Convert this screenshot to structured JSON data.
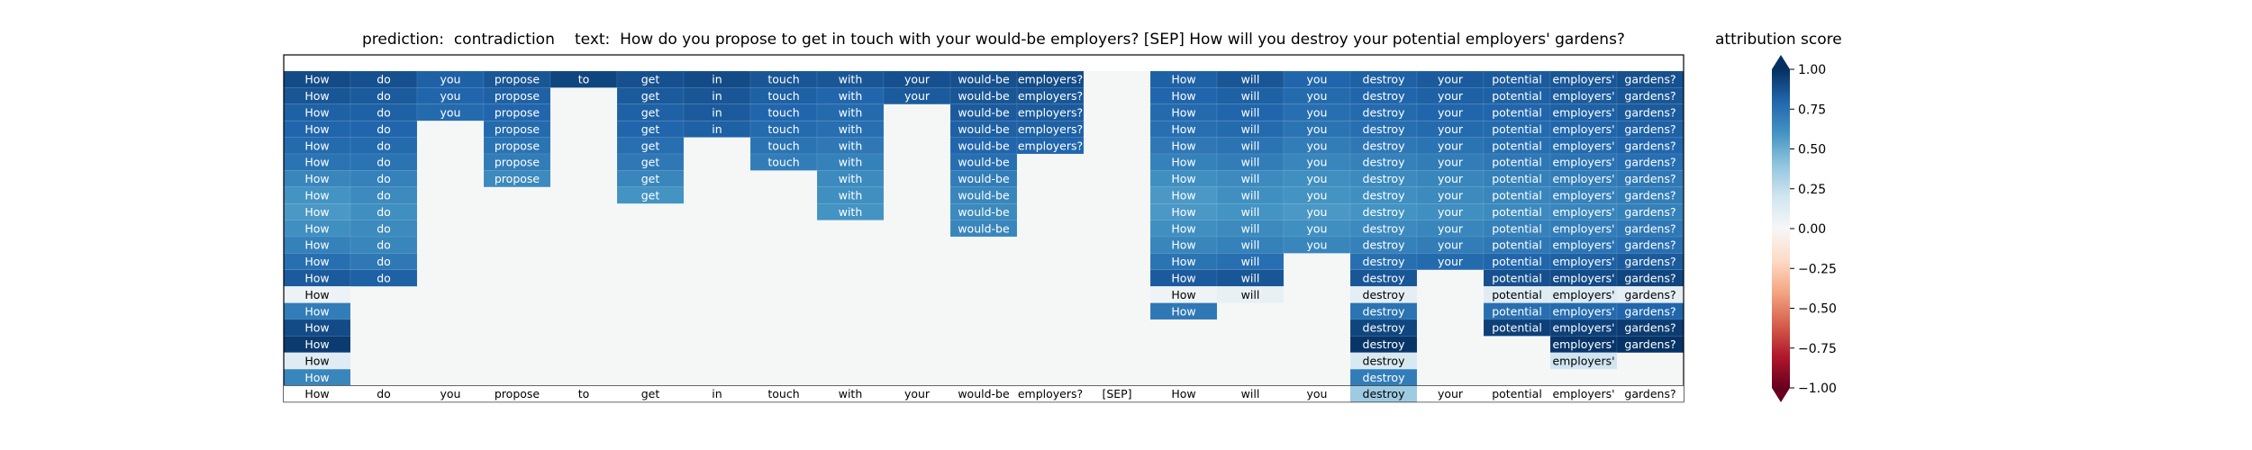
{
  "chart_data": {
    "type": "heatmap",
    "title_prediction": "prediction:  contradiction",
    "title_text": "text:  How do you propose to get in touch with your would-be employers? [SEP] How will you destroy your potential employers' gardens?",
    "colorbar_label": "attribution score",
    "colorbar_ticks": [
      "1.00",
      "0.75",
      "0.50",
      "0.25",
      "0.00",
      "−0.25",
      "−0.50",
      "−0.75",
      "−1.00"
    ],
    "colorbar_range": [
      -1,
      1
    ],
    "colormap": "RdBu",
    "tokens": [
      "How",
      "do",
      "you",
      "propose",
      "to",
      "get",
      "in",
      "touch",
      "with",
      "your",
      "would-be",
      "employers?",
      "[SEP]",
      "How",
      "will",
      "you",
      "destroy",
      "your",
      "potential",
      "employers'",
      "gardens?"
    ],
    "rows": [
      [
        0.9,
        0.88,
        0.82,
        0.86,
        0.92,
        0.88,
        0.9,
        0.86,
        0.86,
        0.88,
        0.88,
        0.9,
        null,
        0.82,
        0.86,
        0.8,
        0.82,
        0.84,
        0.84,
        0.86,
        0.88
      ],
      [
        0.86,
        0.84,
        0.8,
        0.82,
        null,
        0.84,
        0.86,
        0.82,
        0.8,
        0.84,
        0.86,
        0.86,
        null,
        0.8,
        0.82,
        0.78,
        0.8,
        0.82,
        0.82,
        0.84,
        0.86
      ],
      [
        0.82,
        0.82,
        0.78,
        0.8,
        null,
        0.82,
        0.84,
        0.8,
        0.78,
        null,
        0.84,
        0.84,
        null,
        0.78,
        0.8,
        0.76,
        0.78,
        0.8,
        0.8,
        0.82,
        0.84
      ],
      [
        0.8,
        0.8,
        null,
        0.78,
        null,
        0.8,
        0.82,
        0.78,
        0.76,
        null,
        0.82,
        0.82,
        null,
        0.76,
        0.78,
        0.74,
        0.76,
        0.78,
        0.78,
        0.8,
        0.82
      ],
      [
        0.78,
        0.78,
        null,
        0.74,
        null,
        0.76,
        null,
        0.74,
        0.72,
        null,
        0.8,
        0.8,
        null,
        0.72,
        0.74,
        0.7,
        0.72,
        0.74,
        0.76,
        0.78,
        0.8
      ],
      [
        0.74,
        0.74,
        null,
        0.7,
        null,
        0.72,
        null,
        0.7,
        0.68,
        null,
        0.76,
        null,
        null,
        0.68,
        0.7,
        0.66,
        0.68,
        0.7,
        0.72,
        0.74,
        0.76
      ],
      [
        0.66,
        0.68,
        null,
        0.64,
        null,
        0.66,
        null,
        null,
        0.64,
        null,
        0.7,
        null,
        null,
        0.62,
        0.64,
        0.62,
        0.64,
        0.66,
        0.68,
        0.7,
        0.72
      ],
      [
        0.6,
        0.64,
        null,
        null,
        null,
        0.6,
        null,
        null,
        0.62,
        null,
        0.66,
        null,
        null,
        0.58,
        0.62,
        0.6,
        0.62,
        0.64,
        0.66,
        0.68,
        0.7
      ],
      [
        0.58,
        0.62,
        null,
        null,
        null,
        null,
        null,
        null,
        0.6,
        null,
        0.64,
        null,
        null,
        0.58,
        0.6,
        0.58,
        0.6,
        0.62,
        0.64,
        0.66,
        0.68
      ],
      [
        0.62,
        0.64,
        null,
        null,
        null,
        null,
        null,
        null,
        null,
        null,
        0.66,
        null,
        null,
        0.62,
        0.64,
        0.62,
        0.64,
        0.66,
        0.68,
        0.7,
        0.72
      ],
      [
        0.68,
        0.66,
        null,
        null,
        null,
        null,
        null,
        null,
        null,
        null,
        null,
        null,
        null,
        0.66,
        0.68,
        0.66,
        0.68,
        0.7,
        0.72,
        0.74,
        0.76
      ],
      [
        0.76,
        0.72,
        null,
        null,
        null,
        null,
        null,
        null,
        null,
        null,
        null,
        null,
        null,
        0.74,
        0.76,
        null,
        0.76,
        0.78,
        0.8,
        0.82,
        0.84
      ],
      [
        0.84,
        0.82,
        null,
        null,
        null,
        null,
        null,
        null,
        null,
        null,
        null,
        null,
        null,
        0.84,
        0.86,
        null,
        0.86,
        null,
        0.88,
        0.9,
        0.92
      ],
      [
        0.06,
        null,
        null,
        null,
        null,
        null,
        null,
        null,
        null,
        null,
        null,
        null,
        null,
        0.04,
        0.08,
        null,
        0.1,
        null,
        0.12,
        0.14,
        0.1
      ],
      [
        0.7,
        null,
        null,
        null,
        null,
        null,
        null,
        null,
        null,
        null,
        null,
        null,
        null,
        0.72,
        null,
        null,
        0.74,
        null,
        0.76,
        0.78,
        0.8
      ],
      [
        0.9,
        null,
        null,
        null,
        null,
        null,
        null,
        null,
        null,
        null,
        null,
        null,
        null,
        null,
        null,
        null,
        0.92,
        null,
        0.94,
        0.94,
        0.96
      ],
      [
        0.96,
        null,
        null,
        null,
        null,
        null,
        null,
        null,
        null,
        null,
        null,
        null,
        null,
        null,
        null,
        null,
        0.98,
        null,
        null,
        0.98,
        0.99
      ],
      [
        0.12,
        null,
        null,
        null,
        null,
        null,
        null,
        null,
        null,
        null,
        null,
        null,
        null,
        null,
        null,
        null,
        0.16,
        null,
        null,
        0.2,
        null
      ],
      [
        0.66,
        null,
        null,
        null,
        null,
        null,
        null,
        null,
        null,
        null,
        null,
        null,
        null,
        null,
        null,
        null,
        0.7,
        null,
        null,
        null,
        null
      ]
    ],
    "token_scores": [
      0.02,
      0.0,
      0.0,
      0.0,
      0.0,
      0.0,
      0.0,
      0.0,
      0.0,
      0.0,
      0.0,
      0.0,
      0.0,
      0.0,
      0.0,
      0.0,
      0.36,
      0.0,
      0.0,
      0.0,
      0.0
    ]
  }
}
